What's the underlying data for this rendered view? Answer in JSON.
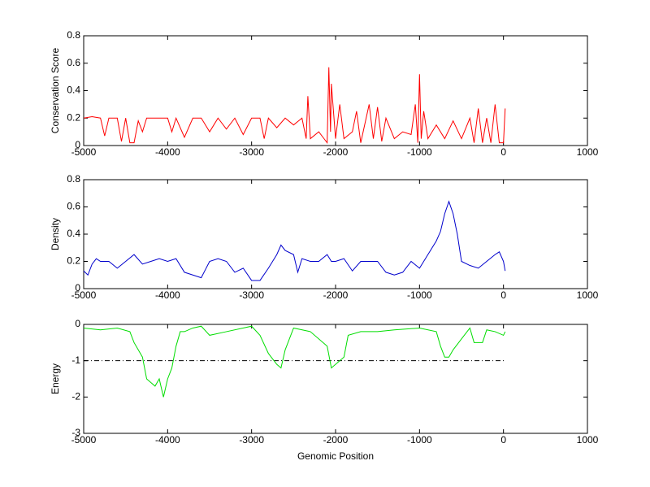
{
  "chart_data": [
    {
      "type": "line",
      "ylabel": "Conservation Score",
      "color": "#ff0000",
      "xlim": [
        -5000,
        1000
      ],
      "xticks": [
        -5000,
        -4000,
        -3000,
        -2000,
        -1000,
        0,
        1000
      ],
      "ylim": [
        0,
        0.8
      ],
      "yticks": [
        0,
        0.2,
        0.4,
        0.6,
        0.8
      ],
      "x": [
        -5000,
        -4900,
        -4800,
        -4750,
        -4700,
        -4600,
        -4550,
        -4500,
        -4450,
        -4400,
        -4350,
        -4300,
        -4250,
        -4100,
        -4000,
        -3950,
        -3900,
        -3800,
        -3700,
        -3600,
        -3500,
        -3450,
        -3400,
        -3300,
        -3200,
        -3100,
        -3000,
        -2900,
        -2850,
        -2800,
        -2700,
        -2600,
        -2500,
        -2400,
        -2350,
        -2330,
        -2300,
        -2200,
        -2100,
        -2080,
        -2060,
        -2050,
        -2000,
        -1950,
        -1900,
        -1800,
        -1750,
        -1700,
        -1600,
        -1550,
        -1500,
        -1450,
        -1400,
        -1300,
        -1200,
        -1100,
        -1050,
        -1020,
        -1000,
        -980,
        -950,
        -900,
        -800,
        -700,
        -600,
        -500,
        -400,
        -350,
        -300,
        -250,
        -200,
        -150,
        -100,
        -50,
        0,
        20
      ],
      "values": [
        0.2,
        0.21,
        0.2,
        0.07,
        0.2,
        0.2,
        0.03,
        0.2,
        0.02,
        0.02,
        0.18,
        0.1,
        0.2,
        0.2,
        0.2,
        0.1,
        0.2,
        0.06,
        0.2,
        0.2,
        0.1,
        0.15,
        0.2,
        0.12,
        0.2,
        0.08,
        0.2,
        0.2,
        0.05,
        0.2,
        0.13,
        0.2,
        0.15,
        0.2,
        0.05,
        0.36,
        0.05,
        0.1,
        0.02,
        0.57,
        0.1,
        0.45,
        0.05,
        0.3,
        0.05,
        0.1,
        0.25,
        0.02,
        0.3,
        0.05,
        0.28,
        0.03,
        0.2,
        0.05,
        0.1,
        0.08,
        0.3,
        0.02,
        0.52,
        0.05,
        0.25,
        0.05,
        0.15,
        0.05,
        0.18,
        0.05,
        0.2,
        0.02,
        0.27,
        0.02,
        0.2,
        0.02,
        0.3,
        0.02,
        0.02,
        0.27
      ]
    },
    {
      "type": "line",
      "ylabel": "Density",
      "color": "#0000cc",
      "xlim": [
        -5000,
        1000
      ],
      "xticks": [
        -5000,
        -4000,
        -3000,
        -2000,
        -1000,
        0,
        1000
      ],
      "ylim": [
        0,
        0.8
      ],
      "yticks": [
        0,
        0.2,
        0.4,
        0.6,
        0.8
      ],
      "x": [
        -5000,
        -4950,
        -4900,
        -4850,
        -4800,
        -4700,
        -4600,
        -4500,
        -4400,
        -4300,
        -4200,
        -4100,
        -4000,
        -3900,
        -3800,
        -3700,
        -3600,
        -3500,
        -3400,
        -3300,
        -3200,
        -3100,
        -3000,
        -2900,
        -2800,
        -2700,
        -2650,
        -2600,
        -2500,
        -2450,
        -2400,
        -2300,
        -2200,
        -2100,
        -2050,
        -2000,
        -1900,
        -1800,
        -1700,
        -1600,
        -1500,
        -1400,
        -1300,
        -1200,
        -1100,
        -1000,
        -900,
        -800,
        -750,
        -700,
        -650,
        -600,
        -550,
        -500,
        -400,
        -300,
        -200,
        -100,
        -50,
        0,
        20
      ],
      "values": [
        0.13,
        0.1,
        0.18,
        0.22,
        0.2,
        0.2,
        0.15,
        0.2,
        0.25,
        0.18,
        0.2,
        0.22,
        0.2,
        0.22,
        0.12,
        0.1,
        0.08,
        0.2,
        0.22,
        0.2,
        0.12,
        0.15,
        0.06,
        0.06,
        0.15,
        0.25,
        0.32,
        0.28,
        0.25,
        0.12,
        0.22,
        0.2,
        0.2,
        0.25,
        0.2,
        0.2,
        0.22,
        0.13,
        0.2,
        0.2,
        0.2,
        0.12,
        0.1,
        0.12,
        0.2,
        0.15,
        0.25,
        0.35,
        0.42,
        0.55,
        0.64,
        0.55,
        0.4,
        0.2,
        0.17,
        0.15,
        0.2,
        0.25,
        0.27,
        0.2,
        0.13
      ]
    },
    {
      "type": "line",
      "ylabel": "Energy",
      "xlabel": "Genomic Position",
      "color": "#00dd00",
      "hline": -1,
      "xlim": [
        -5000,
        1000
      ],
      "xticks": [
        -5000,
        -4000,
        -3000,
        -2000,
        -1000,
        0,
        1000
      ],
      "ylim": [
        -3,
        0
      ],
      "yticks": [
        -3,
        -2,
        -1,
        0
      ],
      "x": [
        -5000,
        -4800,
        -4600,
        -4450,
        -4400,
        -4300,
        -4250,
        -4200,
        -4150,
        -4100,
        -4050,
        -4000,
        -3950,
        -3900,
        -3850,
        -3800,
        -3700,
        -3600,
        -3500,
        -3300,
        -3000,
        -2900,
        -2800,
        -2700,
        -2650,
        -2600,
        -2500,
        -2300,
        -2100,
        -2050,
        -2000,
        -1900,
        -1850,
        -1700,
        -1500,
        -1300,
        -1000,
        -800,
        -750,
        -700,
        -650,
        -600,
        -500,
        -400,
        -350,
        -250,
        -200,
        -100,
        0,
        20
      ],
      "values": [
        -0.1,
        -0.15,
        -0.1,
        -0.2,
        -0.5,
        -0.9,
        -1.5,
        -1.6,
        -1.7,
        -1.5,
        -2.0,
        -1.5,
        -1.2,
        -0.6,
        -0.2,
        -0.2,
        -0.1,
        -0.05,
        -0.3,
        -0.2,
        -0.05,
        -0.3,
        -0.8,
        -1.1,
        -1.2,
        -0.7,
        -0.1,
        -0.2,
        -0.6,
        -1.2,
        -1.1,
        -0.9,
        -0.3,
        -0.2,
        -0.2,
        -0.15,
        -0.1,
        -0.2,
        -0.6,
        -0.9,
        -0.9,
        -0.7,
        -0.4,
        -0.1,
        -0.5,
        -0.5,
        -0.15,
        -0.2,
        -0.3,
        -0.2
      ]
    }
  ]
}
